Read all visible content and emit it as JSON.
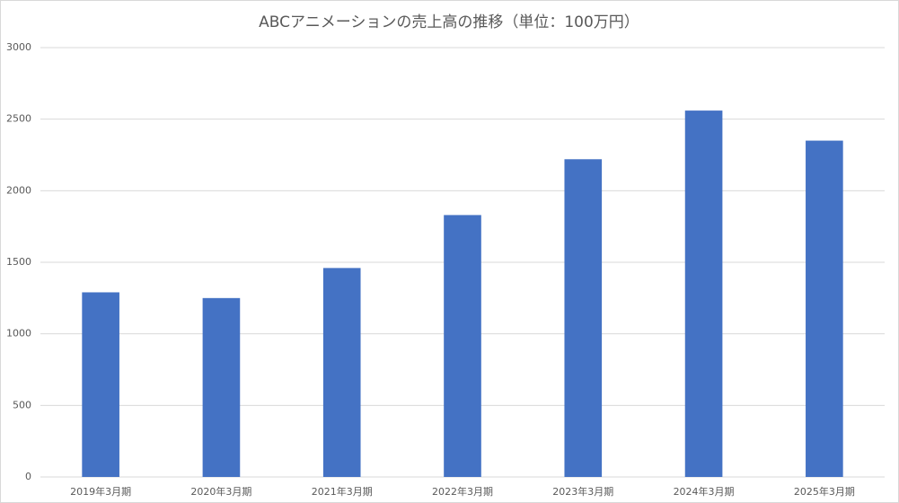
{
  "chart_data": {
    "type": "bar",
    "title": "ABCアニメーションの売上高の推移（単位：100万円）",
    "categories": [
      "2019年3月期",
      "2020年3月期",
      "2021年3月期",
      "2022年3月期",
      "2023年3月期",
      "2024年3月期",
      "2025年3月期"
    ],
    "values": [
      1290,
      1250,
      1460,
      1830,
      2220,
      2560,
      2350
    ],
    "color": "#4472c4",
    "ylim": [
      0,
      3000
    ],
    "yticks": [
      0,
      500,
      1000,
      1500,
      2000,
      2500,
      3000
    ],
    "grid": true
  }
}
